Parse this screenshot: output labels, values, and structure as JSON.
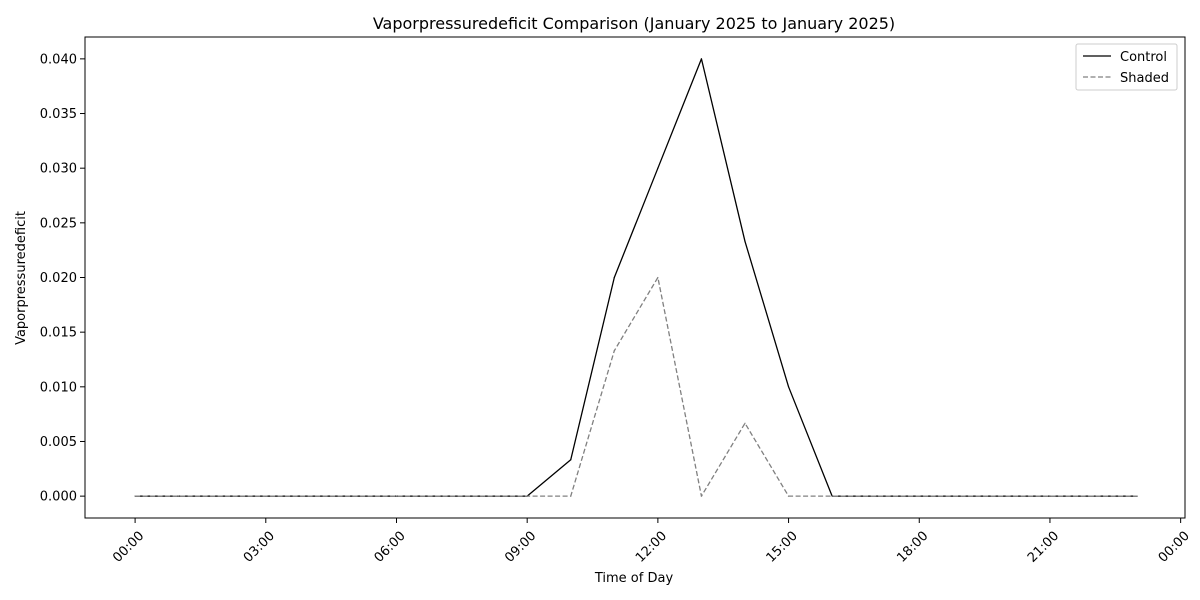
{
  "chart_data": {
    "type": "line",
    "title": "Vaporpressuredeficit Comparison (January 2025 to January 2025)",
    "xlabel": "Time of Day",
    "ylabel": "Vaporpressuredeficit",
    "x": [
      "00:00",
      "01:00",
      "02:00",
      "03:00",
      "04:00",
      "05:00",
      "06:00",
      "07:00",
      "08:00",
      "09:00",
      "10:00",
      "11:00",
      "12:00",
      "13:00",
      "14:00",
      "15:00",
      "16:00",
      "17:00",
      "18:00",
      "19:00",
      "20:00",
      "21:00",
      "22:00",
      "23:00"
    ],
    "x_ticks": [
      "00:00",
      "03:00",
      "06:00",
      "09:00",
      "12:00",
      "15:00",
      "18:00",
      "21:00",
      "00:00"
    ],
    "x_tick_hours": [
      0,
      3,
      6,
      9,
      12,
      15,
      18,
      21,
      24
    ],
    "xlim_hours": [
      -1.15,
      24.1
    ],
    "ylim": [
      -0.002,
      0.042
    ],
    "y_ticks": [
      "0.000",
      "0.005",
      "0.010",
      "0.015",
      "0.020",
      "0.025",
      "0.030",
      "0.035",
      "0.040"
    ],
    "y_tick_values": [
      0.0,
      0.005,
      0.01,
      0.015,
      0.02,
      0.025,
      0.03,
      0.035,
      0.04
    ],
    "grid": false,
    "legend_position": "top-right",
    "series": [
      {
        "name": "Control",
        "color": "#000000",
        "style": "solid",
        "values": [
          0,
          0,
          0,
          0,
          0,
          0,
          0,
          0,
          0,
          0,
          0.00333,
          0.02,
          0.03,
          0.04,
          0.0233,
          0.01,
          0,
          0,
          0,
          0,
          0,
          0,
          0,
          0
        ]
      },
      {
        "name": "Shaded",
        "color": "#808080",
        "style": "dashed",
        "values": [
          0,
          0,
          0,
          0,
          0,
          0,
          0,
          0,
          0,
          0,
          0,
          0.0133,
          0.02,
          0,
          0.00667,
          0,
          0,
          0,
          0,
          0,
          0,
          0,
          0,
          0
        ]
      }
    ]
  }
}
